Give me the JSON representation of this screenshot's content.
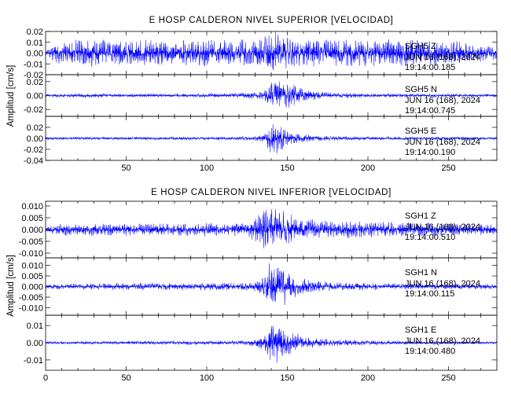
{
  "chart_data": [
    {
      "type": "line",
      "title": "E HOSP CALDERON NIVEL SUPERIOR [VELOCIDAD]",
      "ylabel": "Amplitud [cm/s]",
      "xlim": [
        0,
        280
      ],
      "x_ticks": [
        50,
        100,
        150,
        200,
        250
      ],
      "trace_color": "#0000ff",
      "panels": [
        {
          "station": "SGH5",
          "component": "Z",
          "date_label": "JUN 16 (168), 2024",
          "time_label": "19:14:00.185",
          "ylim": [
            -0.02,
            0.02
          ],
          "y_ticks": [
            0.02,
            0.01,
            0.0,
            -0.01,
            -0.02
          ],
          "y_tick_labels": [
            "0.02",
            "0.01",
            "0.00",
            "-0.01",
            "-0.02"
          ],
          "envelope": {
            "x": [
              0,
              5,
              10,
              20,
              40,
              60,
              80,
              100,
              120,
              130,
              135,
              140,
              143,
              146,
              150,
              160,
              180,
              200,
              230,
              260,
              280
            ],
            "y": [
              0.002,
              0.008,
              0.012,
              0.013,
              0.013,
              0.013,
              0.013,
              0.013,
              0.013,
              0.013,
              0.016,
              0.022,
              0.024,
              0.02,
              0.016,
              0.014,
              0.013,
              0.013,
              0.013,
              0.011,
              0.006
            ]
          }
        },
        {
          "station": "SGH5",
          "component": "N",
          "date_label": "JUN 16 (168), 2024",
          "time_label": "19:14:00.745",
          "ylim": [
            -0.03,
            0.03
          ],
          "y_ticks": [
            0.02,
            0.0,
            -0.02
          ],
          "y_tick_labels": [
            "0.02",
            "0.00",
            "-0.02"
          ],
          "envelope": {
            "x": [
              0,
              20,
              60,
              100,
              120,
              130,
              136,
              140,
              143,
              146,
              150,
              155,
              160,
              170,
              180,
              200,
              240,
              280
            ],
            "y": [
              0.0025,
              0.003,
              0.003,
              0.003,
              0.004,
              0.005,
              0.009,
              0.02,
              0.025,
              0.022,
              0.02,
              0.018,
              0.01,
              0.006,
              0.004,
              0.003,
              0.0028,
              0.0025
            ]
          }
        },
        {
          "station": "SGH5",
          "component": "E",
          "date_label": "JUN 16 (168), 2024",
          "time_label": "19:14:00.190",
          "ylim": [
            -0.04,
            0.04
          ],
          "y_ticks": [
            0.02,
            0.0,
            -0.02,
            -0.04
          ],
          "y_tick_labels": [
            "0.02",
            "0.00",
            "-0.02",
            "-0.04"
          ],
          "envelope": {
            "x": [
              0,
              20,
              60,
              100,
              120,
              130,
              136,
              139,
              142,
              146,
              150,
              155,
              160,
              170,
              180,
              200,
              240,
              280
            ],
            "y": [
              0.0028,
              0.003,
              0.003,
              0.003,
              0.004,
              0.005,
              0.01,
              0.028,
              0.032,
              0.026,
              0.018,
              0.012,
              0.008,
              0.005,
              0.004,
              0.0032,
              0.003,
              0.0028
            ]
          }
        }
      ]
    },
    {
      "type": "line",
      "title": "E HOSP CALDERON NIVEL INFERIOR [VELOCIDAD]",
      "ylabel": "Amplitud [cm/s]",
      "xlim": [
        0,
        280
      ],
      "x_ticks": [
        0,
        50,
        100,
        150,
        200,
        250
      ],
      "trace_color": "#0000ff",
      "panels": [
        {
          "station": "SGH1",
          "component": "Z",
          "date_label": "JUN 16 (168), 2024",
          "time_label": "19:14:00.510",
          "ylim": [
            -0.012,
            0.012
          ],
          "y_ticks": [
            0.01,
            0.005,
            0.0,
            -0.005,
            -0.01
          ],
          "y_tick_labels": [
            "0.010",
            "0.005",
            "0.000",
            "-0.005",
            "-0.010"
          ],
          "envelope": {
            "x": [
              0,
              10,
              30,
              60,
              100,
              125,
              131,
              135,
              138,
              141,
              145,
              150,
              160,
              180,
              200,
              240,
              270,
              280
            ],
            "y": [
              0.0018,
              0.0025,
              0.0028,
              0.0028,
              0.003,
              0.003,
              0.006,
              0.009,
              0.011,
              0.0105,
              0.009,
              0.007,
              0.005,
              0.004,
              0.0035,
              0.003,
              0.0028,
              0.002
            ]
          }
        },
        {
          "station": "SGH1",
          "component": "N",
          "date_label": "JUN 16 (168), 2024",
          "time_label": "19:14:00.115",
          "ylim": [
            -0.0135,
            0.0135
          ],
          "y_ticks": [
            0.01,
            0.005,
            0.0,
            -0.005,
            -0.01
          ],
          "y_tick_labels": [
            "0.010",
            "0.005",
            "0.000",
            "-0.005",
            "-0.010"
          ],
          "envelope": {
            "x": [
              0,
              20,
              60,
              100,
              125,
              132,
              136,
              139,
              142,
              145,
              150,
              155,
              160,
              170,
              180,
              200,
              240,
              280
            ],
            "y": [
              0.0012,
              0.0015,
              0.0018,
              0.0018,
              0.002,
              0.003,
              0.006,
              0.012,
              0.0125,
              0.011,
              0.008,
              0.006,
              0.004,
              0.003,
              0.0022,
              0.0018,
              0.0015,
              0.0012
            ]
          }
        },
        {
          "station": "SGH1",
          "component": "E",
          "date_label": "JUN 16 (168), 2024",
          "time_label": "19:14:00.480",
          "ylim": [
            -0.016,
            0.016
          ],
          "y_ticks": [
            0.01,
            0.0,
            -0.01
          ],
          "y_tick_labels": [
            "0.01",
            "0.00",
            "-0.01"
          ],
          "envelope": {
            "x": [
              0,
              20,
              60,
              100,
              125,
              132,
              136,
              139,
              142,
              145,
              150,
              155,
              160,
              170,
              180,
              200,
              240,
              280
            ],
            "y": [
              0.0008,
              0.001,
              0.0012,
              0.0012,
              0.0015,
              0.003,
              0.006,
              0.012,
              0.0145,
              0.012,
              0.008,
              0.006,
              0.004,
              0.003,
              0.002,
              0.0015,
              0.001,
              0.0008
            ]
          }
        }
      ]
    }
  ]
}
